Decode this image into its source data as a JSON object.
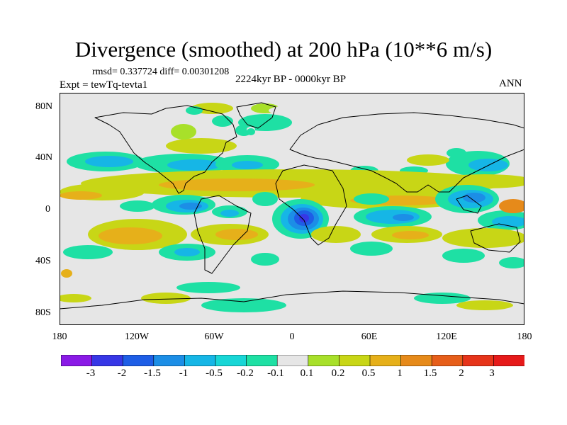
{
  "title": "Divergence (smoothed) at 200 hPa (10**6 m/s)",
  "stats": "rmsd= 0.337724 diff= 0.00301208",
  "experiment": "Expt = tewTq-tevta1",
  "period": "2224kyr BP - 0000kyr BP",
  "season": "ANN",
  "lat_labels": [
    "80N",
    "40N",
    "0",
    "40S",
    "80S"
  ],
  "lon_labels": [
    "180",
    "120W",
    "60W",
    "0",
    "60E",
    "120E",
    "180"
  ],
  "colorbar": {
    "labels": [
      "-3",
      "-2",
      "-1.5",
      "-1",
      "-0.5",
      "-0.2",
      "-0.1",
      "0.1",
      "0.2",
      "0.5",
      "1",
      "1.5",
      "2",
      "3"
    ],
    "colors": [
      "#8a1ae6",
      "#3737e6",
      "#1e5ee6",
      "#1c8ee6",
      "#16b6e6",
      "#18d6d6",
      "#1ee0a4",
      "#e6e6e6",
      "#a8e02a",
      "#c8d616",
      "#e6b01a",
      "#e68a1a",
      "#e65e1a",
      "#e6341a",
      "#e61a1a"
    ]
  },
  "field_colors": {
    "background": "#e6e6e6",
    "coastline": "#000000"
  }
}
